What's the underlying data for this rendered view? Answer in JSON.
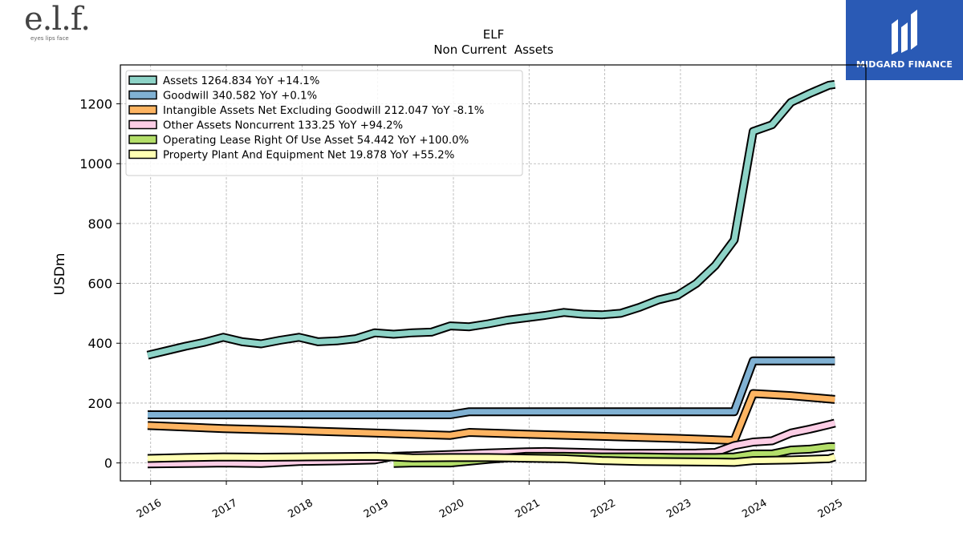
{
  "header": {
    "logo_text": "e.l.f.",
    "logo_tagline": "eyes lips face",
    "brand_name": "MIDGARD FINANCE"
  },
  "chart_data": {
    "type": "line",
    "title": "ELF",
    "subtitle": "Non Current  Assets",
    "xlabel": "",
    "ylabel": "USDm",
    "ylim": [
      -60,
      1330
    ],
    "xlim": [
      2015.6,
      2025.45
    ],
    "yticks": [
      0,
      200,
      400,
      600,
      800,
      1000,
      1200
    ],
    "xticks": [
      "2016",
      "2017",
      "2018",
      "2019",
      "2020",
      "2021",
      "2022",
      "2023",
      "2024",
      "2025"
    ],
    "grid": true,
    "legend_position": "top-left",
    "series": [
      {
        "name": "Assets  1264.834 YoY +14.1%",
        "color": "#8dd3c7",
        "x": [
          2015.96,
          2016.21,
          2016.46,
          2016.71,
          2016.96,
          2017.21,
          2017.46,
          2017.71,
          2017.96,
          2018.21,
          2018.46,
          2018.71,
          2018.96,
          2019.21,
          2019.46,
          2019.71,
          2019.96,
          2020.21,
          2020.46,
          2020.71,
          2020.96,
          2021.21,
          2021.46,
          2021.71,
          2021.96,
          2022.21,
          2022.46,
          2022.71,
          2022.96,
          2023.21,
          2023.46,
          2023.71,
          2023.96,
          2024.21,
          2024.46,
          2024.71,
          2024.96,
          2025.04
        ],
        "values": [
          360,
          375,
          390,
          403,
          420,
          405,
          398,
          410,
          420,
          405,
          408,
          415,
          435,
          430,
          435,
          437,
          458,
          455,
          465,
          477,
          485,
          493,
          503,
          497,
          495,
          500,
          520,
          545,
          560,
          600,
          660,
          745,
          1108,
          1130,
          1205,
          1235,
          1262,
          1265
        ]
      },
      {
        "name": "Goodwill  340.582 YoY +0.1%",
        "color": "#80b1d3",
        "x": [
          2015.96,
          2016.96,
          2017.96,
          2018.96,
          2019.96,
          2020.21,
          2020.96,
          2021.96,
          2022.96,
          2023.71,
          2023.96,
          2024.96,
          2025.04
        ],
        "values": [
          161,
          161,
          161,
          161,
          161,
          171,
          171,
          171,
          171,
          171,
          341,
          341,
          341
        ]
      },
      {
        "name": "Intangible Assets Net Excluding Goodwill  212.047 YoY -8.1%",
        "color": "#fdb462",
        "x": [
          2015.96,
          2016.96,
          2017.96,
          2018.96,
          2019.96,
          2020.21,
          2020.96,
          2021.96,
          2022.96,
          2023.71,
          2023.96,
          2024.46,
          2025.04
        ],
        "values": [
          125,
          115,
          108,
          100,
          92,
          102,
          96,
          89,
          82,
          75,
          232,
          225,
          212
        ]
      },
      {
        "name": "Other Assets Noncurrent  133.25 YoY +94.2%",
        "color": "#fccde5",
        "x": [
          2015.96,
          2016.46,
          2016.96,
          2017.46,
          2017.96,
          2018.46,
          2018.96,
          2019.21,
          2019.96,
          2020.46,
          2020.71,
          2020.96,
          2021.21,
          2021.71,
          2022.21,
          2022.71,
          2023.21,
          2023.46,
          2023.71,
          2023.96,
          2024.21,
          2024.46,
          2024.71,
          2024.96,
          2025.04
        ],
        "values": [
          -3,
          -2,
          0,
          -2,
          5,
          7,
          10,
          22,
          28,
          33,
          35,
          37,
          38,
          35,
          32,
          32,
          33,
          35,
          58,
          70,
          74,
          100,
          113,
          128,
          133
        ]
      },
      {
        "name": "Operating Lease Right Of Use Asset  54.442 YoY +100.0%",
        "color": "#b3de69",
        "x": [
          2019.21,
          2019.46,
          2019.71,
          2019.96,
          2020.46,
          2020.96,
          2021.46,
          2021.96,
          2022.46,
          2022.96,
          2023.46,
          2023.71,
          2023.96,
          2024.21,
          2024.46,
          2024.71,
          2024.96,
          2025.04
        ],
        "values": [
          -2,
          0,
          0,
          0,
          12,
          22,
          22,
          20,
          20,
          18,
          18,
          20,
          30,
          30,
          43,
          46,
          54,
          54
        ]
      },
      {
        "name": "Property Plant And Equipment Net  19.878 YoY +55.2%",
        "color": "#ffffb3",
        "x": [
          2015.96,
          2016.46,
          2016.96,
          2017.46,
          2017.96,
          2018.46,
          2018.96,
          2019.21,
          2019.46,
          2019.96,
          2020.46,
          2020.96,
          2021.46,
          2021.96,
          2022.46,
          2022.96,
          2023.46,
          2023.71,
          2023.96,
          2024.46,
          2024.96,
          2025.04
        ],
        "values": [
          15,
          18,
          20,
          19,
          20,
          21,
          22,
          20,
          17,
          18,
          18,
          16,
          14,
          8,
          5,
          4,
          3,
          2,
          8,
          10,
          14,
          20
        ]
      }
    ]
  }
}
